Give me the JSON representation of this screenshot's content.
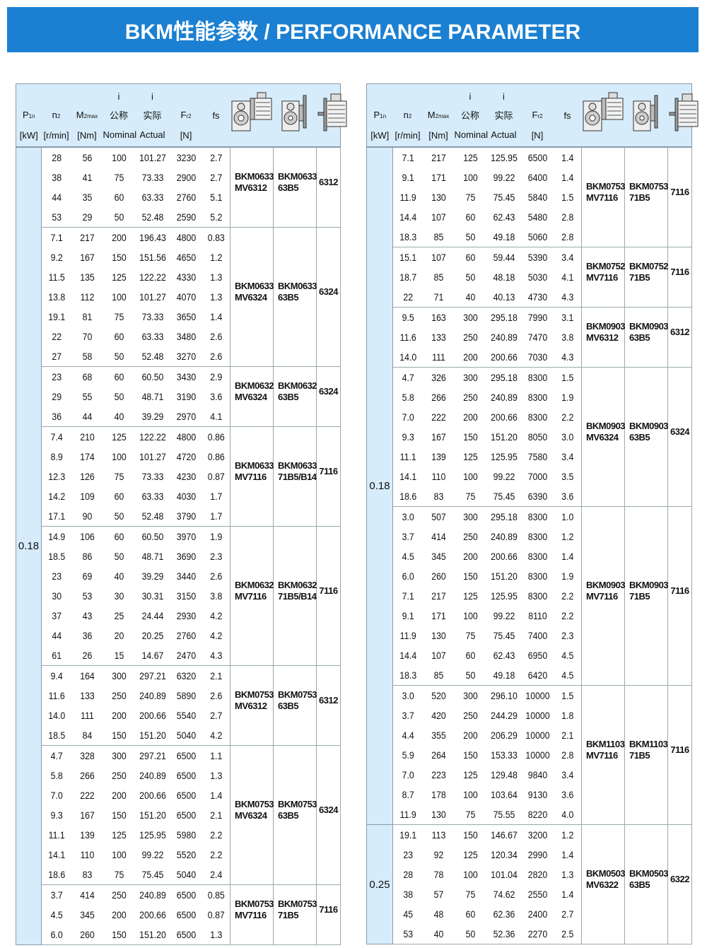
{
  "title": "BKM性能参数 / PERFORMANCE PARAMETER",
  "header": {
    "p": "P",
    "p_sub": "1n",
    "p_unit": "[kW]",
    "n": "n",
    "n_sub": "2",
    "n_unit": "[r/min]",
    "m": "M",
    "m_sub": "2max",
    "m_unit": "[Nm]",
    "i_nom_sym": "i",
    "i_nom_cn": "公称",
    "i_nom_en": "Nominal",
    "i_act_sym": "i",
    "i_act_cn": "实际",
    "i_act_en": "Actual",
    "f": "F",
    "f_sub": "r2",
    "f_unit": "[N]",
    "fs": "fs",
    "icons": [
      "gearbox-with-motor-icon",
      "gearbox-with-flange-icon",
      "motor-icon"
    ]
  },
  "tables": [
    {
      "power_groups": [
        {
          "power": "0.18",
          "rows": 40
        }
      ],
      "groups": [
        {
          "m1": "BKM0633",
          "m2": "MV6312",
          "g1": "BKM0633",
          "g2": "63B5",
          "motor": "6312",
          "rows": [
            [
              "28",
              "56",
              "100",
              "101.27",
              "3230",
              "2.7"
            ],
            [
              "38",
              "41",
              "75",
              "73.33",
              "2900",
              "2.7"
            ],
            [
              "44",
              "35",
              "60",
              "63.33",
              "2760",
              "5.1"
            ],
            [
              "53",
              "29",
              "50",
              "52.48",
              "2590",
              "5.2"
            ]
          ]
        },
        {
          "m1": "BKM0633",
          "m2": "MV6324",
          "g1": "BKM0633",
          "g2": "63B5",
          "motor": "6324",
          "rows": [
            [
              "7.1",
              "217",
              "200",
              "196.43",
              "4800",
              "0.83"
            ],
            [
              "9.2",
              "167",
              "150",
              "151.56",
              "4650",
              "1.2"
            ],
            [
              "11.5",
              "135",
              "125",
              "122.22",
              "4330",
              "1.3"
            ],
            [
              "13.8",
              "112",
              "100",
              "101.27",
              "4070",
              "1.3"
            ],
            [
              "19.1",
              "81",
              "75",
              "73.33",
              "3650",
              "1.4"
            ],
            [
              "22",
              "70",
              "60",
              "63.33",
              "3480",
              "2.6"
            ],
            [
              "27",
              "58",
              "50",
              "52.48",
              "3270",
              "2.6"
            ]
          ]
        },
        {
          "m1": "BKM0632",
          "m2": "MV6324",
          "g1": "BKM0632",
          "g2": "63B5",
          "motor": "6324",
          "rows": [
            [
              "23",
              "68",
              "60",
              "60.50",
              "3430",
              "2.9"
            ],
            [
              "29",
              "55",
              "50",
              "48.71",
              "3190",
              "3.6"
            ],
            [
              "36",
              "44",
              "40",
              "39.29",
              "2970",
              "4.1"
            ]
          ]
        },
        {
          "m1": "BKM0633",
          "m2": "MV7116",
          "g1": "BKM0633",
          "g2": "71B5/B14",
          "motor": "7116",
          "rows": [
            [
              "7.4",
              "210",
              "125",
              "122.22",
              "4800",
              "0.86"
            ],
            [
              "8.9",
              "174",
              "100",
              "101.27",
              "4720",
              "0.86"
            ],
            [
              "12.3",
              "126",
              "75",
              "73.33",
              "4230",
              "0.87"
            ],
            [
              "14.2",
              "109",
              "60",
              "63.33",
              "4030",
              "1.7"
            ],
            [
              "17.1",
              "90",
              "50",
              "52.48",
              "3790",
              "1.7"
            ]
          ]
        },
        {
          "m1": "BKM0632",
          "m2": "MV7116",
          "g1": "BKM0632",
          "g2": "71B5/B14",
          "motor": "7116",
          "rows": [
            [
              "14.9",
              "106",
              "60",
              "60.50",
              "3970",
              "1.9"
            ],
            [
              "18.5",
              "86",
              "50",
              "48.71",
              "3690",
              "2.3"
            ],
            [
              "23",
              "69",
              "40",
              "39.29",
              "3440",
              "2.6"
            ],
            [
              "30",
              "53",
              "30",
              "30.31",
              "3150",
              "3.8"
            ],
            [
              "37",
              "43",
              "25",
              "24.44",
              "2930",
              "4.2"
            ],
            [
              "44",
              "36",
              "20",
              "20.25",
              "2760",
              "4.2"
            ],
            [
              "61",
              "26",
              "15",
              "14.67",
              "2470",
              "4.3"
            ]
          ]
        },
        {
          "m1": "BKM0753",
          "m2": "MV6312",
          "g1": "BKM0753",
          "g2": "63B5",
          "motor": "6312",
          "rows": [
            [
              "9.4",
              "164",
              "300",
              "297.21",
              "6320",
              "2.1"
            ],
            [
              "11.6",
              "133",
              "250",
              "240.89",
              "5890",
              "2.6"
            ],
            [
              "14.0",
              "111",
              "200",
              "200.66",
              "5540",
              "2.7"
            ],
            [
              "18.5",
              "84",
              "150",
              "151.20",
              "5040",
              "4.2"
            ]
          ]
        },
        {
          "m1": "BKM0753",
          "m2": "MV6324",
          "g1": "BKM0753",
          "g2": "63B5",
          "motor": "6324",
          "rows": [
            [
              "4.7",
              "328",
              "300",
              "297.21",
              "6500",
              "1.1"
            ],
            [
              "5.8",
              "266",
              "250",
              "240.89",
              "6500",
              "1.3"
            ],
            [
              "7.0",
              "222",
              "200",
              "200.66",
              "6500",
              "1.4"
            ],
            [
              "9.3",
              "167",
              "150",
              "151.20",
              "6500",
              "2.1"
            ],
            [
              "11.1",
              "139",
              "125",
              "125.95",
              "5980",
              "2.2"
            ],
            [
              "14.1",
              "110",
              "100",
              "99.22",
              "5520",
              "2.2"
            ],
            [
              "18.6",
              "83",
              "75",
              "75.45",
              "5040",
              "2.4"
            ]
          ]
        },
        {
          "m1": "BKM0753",
          "m2": "MV7116",
          "g1": "BKM0753",
          "g2": "71B5",
          "motor": "7116",
          "rows": [
            [
              "3.7",
              "414",
              "250",
              "240.89",
              "6500",
              "0.85"
            ],
            [
              "4.5",
              "345",
              "200",
              "200.66",
              "6500",
              "0.87"
            ],
            [
              "6.0",
              "260",
              "150",
              "151.20",
              "6500",
              "1.3"
            ]
          ]
        }
      ]
    },
    {
      "power_groups": [
        {
          "power": "0.18",
          "rows": 34
        },
        {
          "power": "0.25",
          "rows": 6
        }
      ],
      "groups": [
        {
          "m1": "BKM0753",
          "m2": "MV7116",
          "g1": "BKM0753",
          "g2": "71B5",
          "motor": "7116",
          "rows": [
            [
              "7.1",
              "217",
              "125",
              "125.95",
              "6500",
              "1.4"
            ],
            [
              "9.1",
              "171",
              "100",
              "99.22",
              "6400",
              "1.4"
            ],
            [
              "11.9",
              "130",
              "75",
              "75.45",
              "5840",
              "1.5"
            ],
            [
              "14.4",
              "107",
              "60",
              "62.43",
              "5480",
              "2.8"
            ],
            [
              "18.3",
              "85",
              "50",
              "49.18",
              "5060",
              "2.8"
            ]
          ]
        },
        {
          "m1": "BKM0752",
          "m2": "MV7116",
          "g1": "BKM0752",
          "g2": "71B5",
          "motor": "7116",
          "rows": [
            [
              "15.1",
              "107",
              "60",
              "59.44",
              "5390",
              "3.4"
            ],
            [
              "18.7",
              "85",
              "50",
              "48.18",
              "5030",
              "4.1"
            ],
            [
              "22",
              "71",
              "40",
              "40.13",
              "4730",
              "4.3"
            ]
          ]
        },
        {
          "m1": "BKM0903",
          "m2": "MV6312",
          "g1": "BKM0903",
          "g2": "63B5",
          "motor": "6312",
          "rows": [
            [
              "9.5",
              "163",
              "300",
              "295.18",
              "7990",
              "3.1"
            ],
            [
              "11.6",
              "133",
              "250",
              "240.89",
              "7470",
              "3.8"
            ],
            [
              "14.0",
              "111",
              "200",
              "200.66",
              "7030",
              "4.3"
            ]
          ]
        },
        {
          "m1": "BKM0903",
          "m2": "MV6324",
          "g1": "BKM0903",
          "g2": "63B5",
          "motor": "6324",
          "rows": [
            [
              "4.7",
              "326",
              "300",
              "295.18",
              "8300",
              "1.5"
            ],
            [
              "5.8",
              "266",
              "250",
              "240.89",
              "8300",
              "1.9"
            ],
            [
              "7.0",
              "222",
              "200",
              "200.66",
              "8300",
              "2.2"
            ],
            [
              "9.3",
              "167",
              "150",
              "151.20",
              "8050",
              "3.0"
            ],
            [
              "11.1",
              "139",
              "125",
              "125.95",
              "7580",
              "3.4"
            ],
            [
              "14.1",
              "110",
              "100",
              "99.22",
              "7000",
              "3.5"
            ],
            [
              "18.6",
              "83",
              "75",
              "75.45",
              "6390",
              "3.6"
            ]
          ]
        },
        {
          "m1": "BKM0903",
          "m2": "MV7116",
          "g1": "BKM0903",
          "g2": "71B5",
          "motor": "7116",
          "rows": [
            [
              "3.0",
              "507",
              "300",
              "295.18",
              "8300",
              "1.0"
            ],
            [
              "3.7",
              "414",
              "250",
              "240.89",
              "8300",
              "1.2"
            ],
            [
              "4.5",
              "345",
              "200",
              "200.66",
              "8300",
              "1.4"
            ],
            [
              "6.0",
              "260",
              "150",
              "151.20",
              "8300",
              "1.9"
            ],
            [
              "7.1",
              "217",
              "125",
              "125.95",
              "8300",
              "2.2"
            ],
            [
              "9.1",
              "171",
              "100",
              "99.22",
              "8110",
              "2.2"
            ],
            [
              "11.9",
              "130",
              "75",
              "75.45",
              "7400",
              "2.3"
            ],
            [
              "14.4",
              "107",
              "60",
              "62.43",
              "6950",
              "4.5"
            ],
            [
              "18.3",
              "85",
              "50",
              "49.18",
              "6420",
              "4.5"
            ]
          ]
        },
        {
          "m1": "BKM1103",
          "m2": "MV7116",
          "g1": "BKM1103",
          "g2": "71B5",
          "motor": "7116",
          "rows": [
            [
              "3.0",
              "520",
              "300",
              "296.10",
              "10000",
              "1.5"
            ],
            [
              "3.7",
              "420",
              "250",
              "244.29",
              "10000",
              "1.8"
            ],
            [
              "4.4",
              "355",
              "200",
              "206.29",
              "10000",
              "2.1"
            ],
            [
              "5.9",
              "264",
              "150",
              "153.33",
              "10000",
              "2.8"
            ],
            [
              "7.0",
              "223",
              "125",
              "129.48",
              "9840",
              "3.4"
            ],
            [
              "8.7",
              "178",
              "100",
              "103.64",
              "9130",
              "3.6"
            ],
            [
              "11.9",
              "130",
              "75",
              "75.55",
              "8220",
              "4.0"
            ]
          ]
        },
        {
          "m1": "BKM0503",
          "m2": "MV6322",
          "g1": "BKM0503",
          "g2": "63B5",
          "motor": "6322",
          "rows": [
            [
              "19.1",
              "113",
              "150",
              "146.67",
              "3200",
              "1.2"
            ],
            [
              "23",
              "92",
              "125",
              "120.34",
              "2990",
              "1.4"
            ],
            [
              "28",
              "78",
              "100",
              "101.04",
              "2820",
              "1.3"
            ],
            [
              "38",
              "57",
              "75",
              "74.62",
              "2550",
              "1.4"
            ],
            [
              "45",
              "48",
              "60",
              "62.36",
              "2400",
              "2.7"
            ],
            [
              "53",
              "40",
              "50",
              "52.36",
              "2270",
              "2.5"
            ]
          ]
        }
      ]
    }
  ]
}
